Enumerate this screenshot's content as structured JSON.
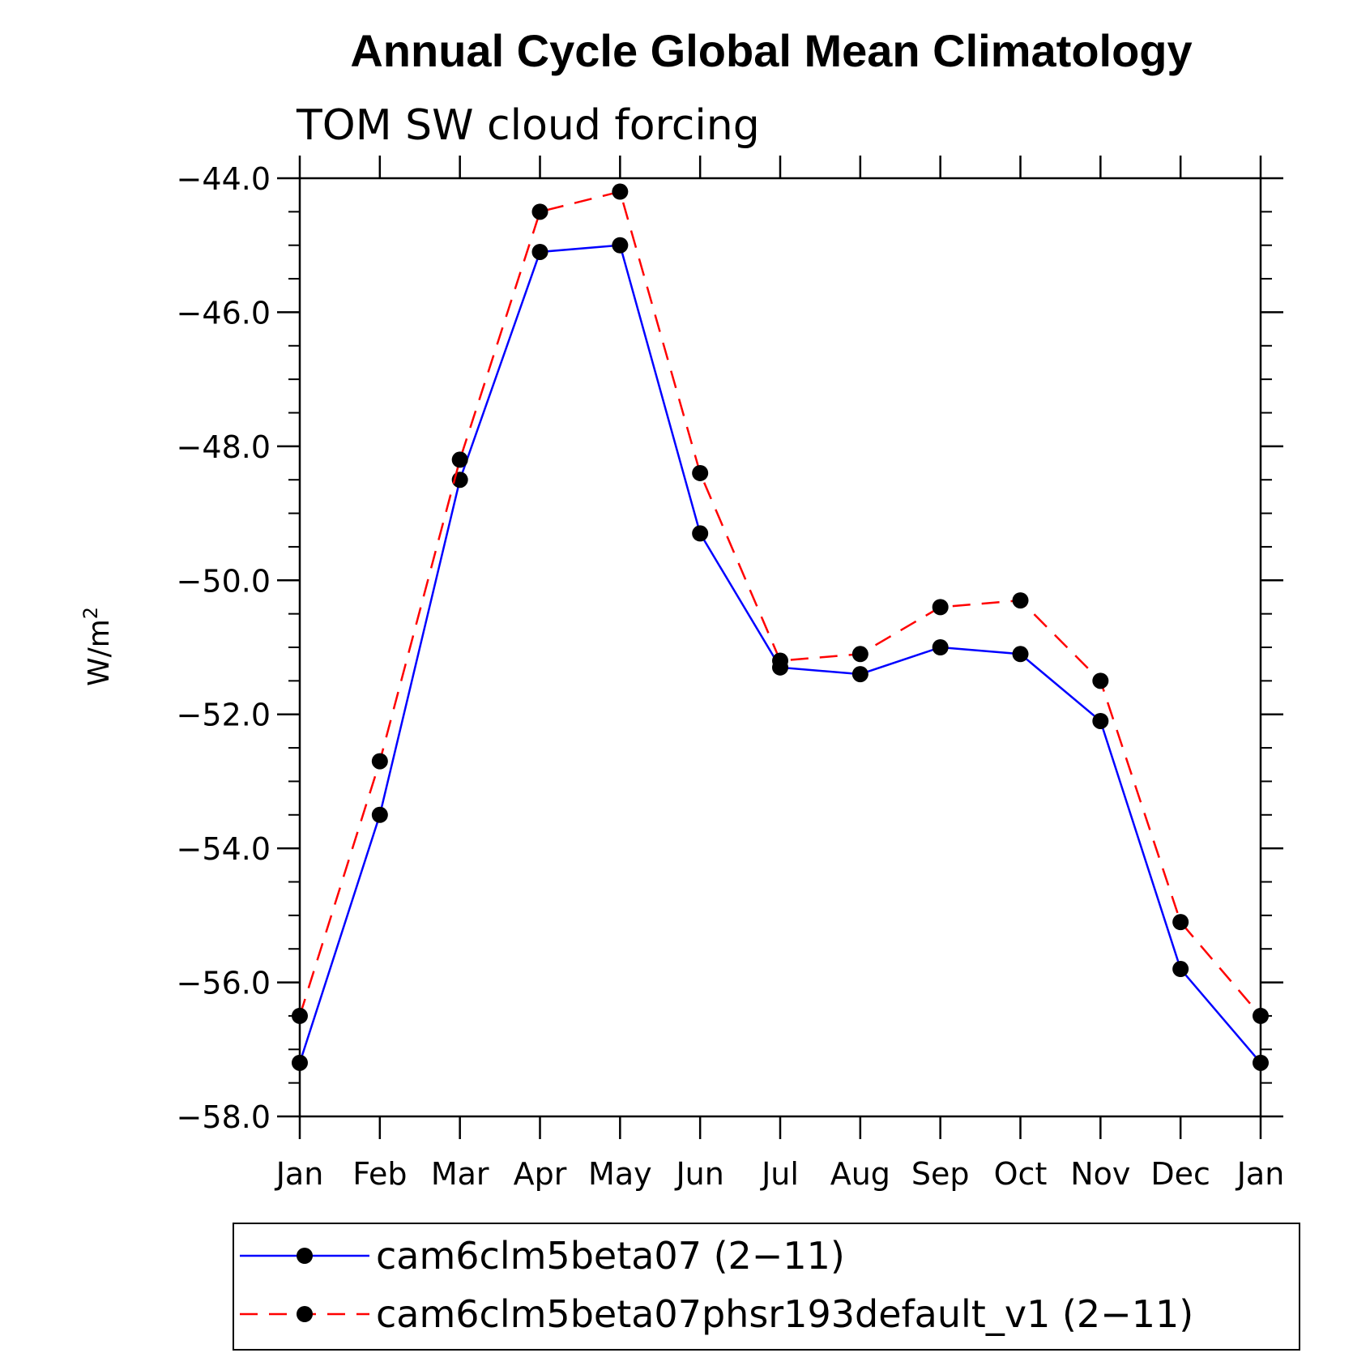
{
  "chart_data": {
    "type": "line",
    "title": "Annual Cycle Global Mean Climatology",
    "subtitle": "TOM SW cloud forcing",
    "ylabel": "W/m",
    "ylabel_superscript": "2",
    "xlabel": "",
    "categories": [
      "Jan",
      "Feb",
      "Mar",
      "Apr",
      "May",
      "Jun",
      "Jul",
      "Aug",
      "Sep",
      "Oct",
      "Nov",
      "Dec",
      "Jan"
    ],
    "ylim": [
      -58.0,
      -44.0
    ],
    "yticks": [
      "-44.0",
      "-46.0",
      "-48.0",
      "-50.0",
      "-52.0",
      "-54.0",
      "-56.0",
      "-58.0"
    ],
    "ytick_values": [
      -44,
      -46,
      -48,
      -50,
      -52,
      -54,
      -56,
      -58
    ],
    "y_minor_step": 0.5,
    "grid": false,
    "legend_position": "bottom",
    "series": [
      {
        "name": "cam6clm5beta07 (2-11)",
        "color": "#0000ff",
        "line_style": "solid",
        "marker": "filled-circle",
        "marker_color": "#000000",
        "values": [
          -57.2,
          -53.5,
          -48.5,
          -45.1,
          -45.0,
          -49.3,
          -51.3,
          -51.4,
          -51.0,
          -51.1,
          -52.1,
          -55.8,
          -57.2
        ]
      },
      {
        "name": "cam6clm5beta07phsr193default_v1 (2-11)",
        "color": "#ff0000",
        "line_style": "dashed",
        "marker": "filled-circle",
        "marker_color": "#000000",
        "values": [
          -56.5,
          -52.7,
          -48.2,
          -44.5,
          -44.2,
          -48.4,
          -51.2,
          -51.1,
          -50.4,
          -50.3,
          -51.5,
          -55.1,
          -56.5
        ]
      }
    ]
  }
}
